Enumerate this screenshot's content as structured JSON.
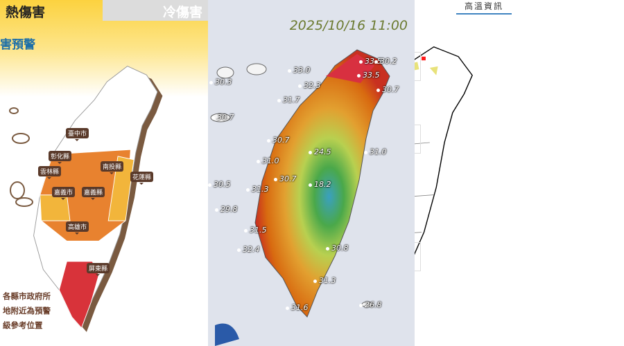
{
  "left_panel": {
    "tabs": [
      {
        "label": "熱傷害",
        "active": true
      },
      {
        "label": "冷傷害",
        "active": false
      }
    ],
    "subtitle": "害預警",
    "counties": [
      "臺中市",
      "彰化縣",
      "南投縣",
      "花蓮縣",
      "雲林縣",
      "嘉義市",
      "嘉義縣",
      "高雄市",
      "屏東縣"
    ],
    "note_lines": [
      "各縣市政府所",
      "地附近為預警",
      "級參考位置"
    ],
    "colors": {
      "red": "#d8333a",
      "orange": "#e8822f",
      "yellow": "#f2b53b",
      "white": "#ffffff"
    }
  },
  "middle_panel": {
    "timestamp": "2025/10/16 11:00",
    "temperatures": [
      "33.5",
      "30.2",
      "33.0",
      "33.5",
      "32.3",
      "30.7",
      "30.3",
      "31.7",
      "30.7",
      "30.7",
      "31.0",
      "24.5",
      "31.0",
      "30.7",
      "18.2",
      "30.5",
      "31.3",
      "29.8",
      "31.5",
      "32.4",
      "30.8",
      "31.3",
      "31.6",
      "26.8"
    ]
  },
  "right_panel": {
    "title": "高溫資訊",
    "colors": {
      "yellow": "#e8e27a",
      "red": "#ff1a1a"
    }
  }
}
